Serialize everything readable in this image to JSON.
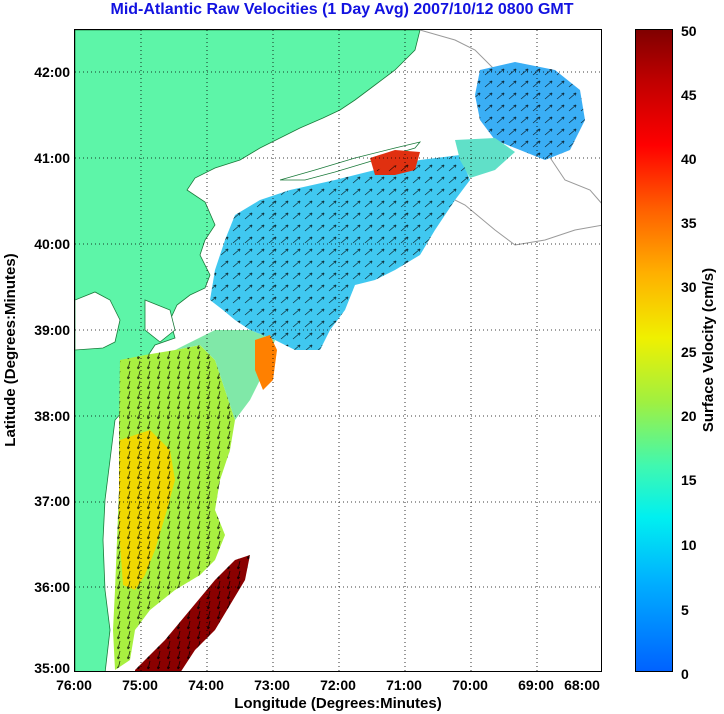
{
  "title": "Mid-Atlantic Raw Velocities (1 Day Avg) 2007/10/12 0800 GMT",
  "x_axis": {
    "label": "Longitude (Degrees:Minutes)",
    "ticks": [
      "76:00",
      "75:00",
      "74:00",
      "73:00",
      "72:00",
      "71:00",
      "70:00",
      "69:00",
      "68:00"
    ]
  },
  "y_axis": {
    "label": "Latitude (Degrees:Minutes)",
    "ticks": [
      "42:00",
      "41:00",
      "40:00",
      "39:00",
      "38:00",
      "37:00",
      "36:00",
      "35:00"
    ]
  },
  "colorbar": {
    "label": "Surface Velocity (cm/s)",
    "ticks": [
      "50",
      "45",
      "40",
      "35",
      "30",
      "25",
      "20",
      "15",
      "10",
      "5",
      "0"
    ],
    "range": [
      0,
      50
    ]
  },
  "colors": {
    "land": "#5df5a8",
    "title": "#1212e0",
    "coastline_outline": "#9a9a9a",
    "grid": "#000000"
  },
  "chart_data": {
    "type": "heatmap",
    "x_range_deg": [
      -76,
      -68
    ],
    "y_range_deg": [
      35,
      42.5
    ],
    "value_unit": "cm/s",
    "value_range": [
      0,
      50
    ],
    "grid": "dotted",
    "legend": "right colorbar"
  }
}
